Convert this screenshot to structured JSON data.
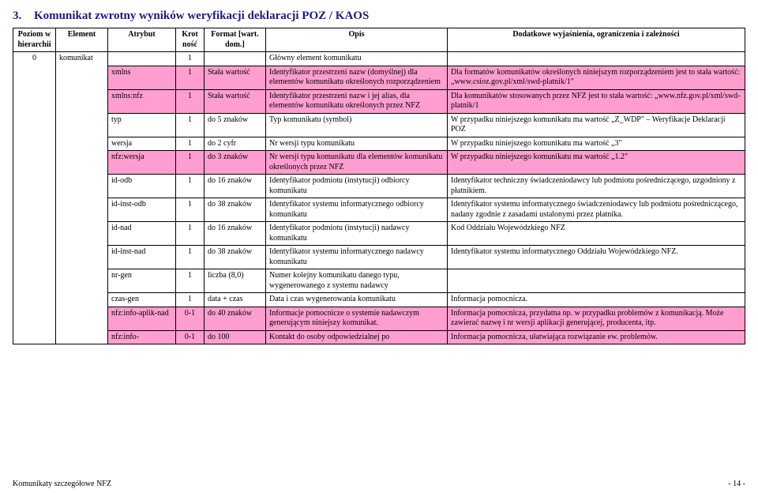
{
  "title_num": "3.",
  "title_text": "Komunikat zwrotny wyników weryfikacji deklaracji POZ / KAOS",
  "headers": {
    "h0": "Poziom w hierarchii",
    "h1": "Element",
    "h2": "Atrybut",
    "h3": "Krot ność",
    "h4": "Format [wart. dom.]",
    "h5": "Opis",
    "h6": "Dodatkowe wyjaśnienia, ograniczenia i zależności"
  },
  "rows": [
    {
      "pink": false,
      "c0": "0",
      "c1": "komunikat",
      "c2": "",
      "c3": "1",
      "c4": "",
      "c5": "Główny element komunikatu",
      "c6": ""
    },
    {
      "pink": true,
      "c2": "xmlns",
      "c3": "1",
      "c4": "Stała wartość",
      "c5": "Identyfikator przestrzeni nazw (domyślnej) dla elementów komunikatu określonych rozporządzeniem",
      "c6": "Dla formatów komunikatów określonych niniejszym rozporządzeniem jest to stała wartość: „www.csioz.gov.pl/xml/swd-platnik/1\""
    },
    {
      "pink": true,
      "c2": "xmlns:nfz",
      "c3": "1",
      "c4": "Stała wartość",
      "c5": "Identyfikator przestrzeni nazw i jej alias, dla elementów komunikatu określonych przez NFZ",
      "c6": "Dla komunikatów stosowanych przez NFZ jest to stała wartość: „www.nfz.gov.pl/xml/swd-platnik/1"
    },
    {
      "pink": false,
      "c2": "typ",
      "c3": "1",
      "c4": "do 5 znaków",
      "c5": "Typ komunikatu (symbol)",
      "c6": "W przypadku niniejszego komunikatu ma wartość „Z_WDP\" – Weryfikacje Deklaracji POZ"
    },
    {
      "pink": false,
      "c2": "wersja",
      "c3": "1",
      "c4": "do 2 cyfr",
      "c5": "Nr wersji typu komunikatu",
      "c6": "W przypadku niniejszego komunikatu ma wartość „3\""
    },
    {
      "pink": true,
      "c2": "nfz:wersja",
      "c3": "1",
      "c4": "do 3 znaków",
      "c5": "Nr wersji typu komunikatu dla elementów komunikatu określonych przez NFZ",
      "c6": "W przypadku niniejszego komunikatu ma wartość „1.2\""
    },
    {
      "pink": false,
      "c2": "id-odb",
      "c3": "1",
      "c4": "do 16 znaków",
      "c5": "Identyfikator podmiotu (instytucji) odbiorcy komunikatu",
      "c6": "Identyfikator techniczny świadczeniodawcy lub podmiotu pośredniczącego, uzgodniony z płatnikiem."
    },
    {
      "pink": false,
      "c2": "id-inst-odb",
      "c3": "1",
      "c4": "do 38 znaków",
      "c5": "Identyfikator systemu informatycznego odbiorcy komunikatu",
      "c6": "Identyfikator systemu informatycznego świadczeniodawcy lub podmiotu pośredniczącego, nadany zgodnie z zasadami ustalonymi przez płatnika."
    },
    {
      "pink": false,
      "c2": "id-nad",
      "c3": "1",
      "c4": "do 16 znaków",
      "c5": "Identyfikator podmiotu (instytucji) nadawcy komunikatu",
      "c6": "Kod Oddziału Wojewódzkiego NFZ"
    },
    {
      "pink": false,
      "c2": "id-inst-nad",
      "c3": "1",
      "c4": "do 38 znaków",
      "c5": "Identyfikator systemu informatycznego nadawcy komunikatu",
      "c6": "Identyfikator systemu informatycznego Oddziału Wojewódzkiego NFZ."
    },
    {
      "pink": false,
      "c2": "nr-gen",
      "c3": "1",
      "c4": "liczba (8,0)",
      "c5": "Numer kolejny komunikatu danego typu, wygenerowanego z systemu nadawcy",
      "c6": ""
    },
    {
      "pink": false,
      "c2": "czas-gen",
      "c3": "1",
      "c4": "data + czas",
      "c5": "Data i czas wygenerowania komunikatu",
      "c6": "Informacja pomocnicza."
    },
    {
      "pink": true,
      "c2": "nfz:info-aplik-nad",
      "c3": "0-1",
      "c4": "do 40 znaków",
      "c5": "Informacje pomocnicze o systemie nadawczym generującym niniejszy komunikat.",
      "c6": "Informacja pomocnicza, przydatna np. w przypadku problemów z komunikacją. Może zawierać nazwę i nr wersji aplikacji generującej, producenta, itp."
    },
    {
      "pink": true,
      "c2": "nfz:info-",
      "c3": "0-1",
      "c4": "do 100",
      "c5": "Kontakt do osoby odpowiedzialnej po",
      "c6": "Informacja pomocnicza, ułatwiająca rozwiązanie ew. problemów."
    }
  ],
  "footer_left": "Komunikaty szczegółowe NFZ",
  "footer_right": "- 14 -",
  "colors": {
    "pink": "#ff9ecf",
    "title": "#1a1a8a",
    "border": "#000000",
    "background": "#ffffff"
  }
}
